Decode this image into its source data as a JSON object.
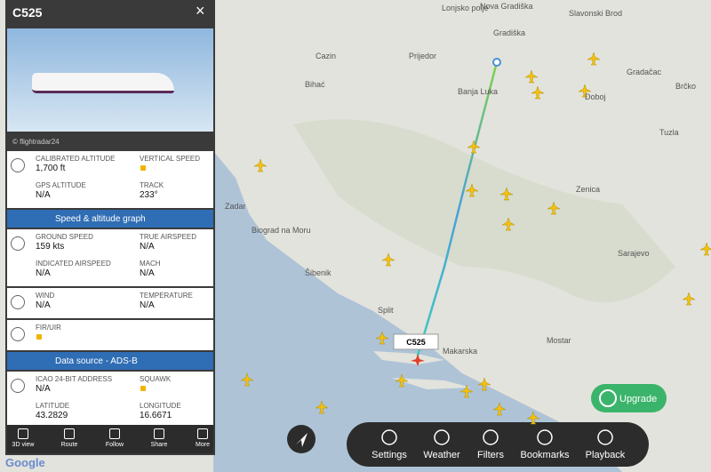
{
  "panel": {
    "title": "C525",
    "photo_credit": "© flightradar24",
    "blocks": [
      {
        "rows": [
          [
            {
              "label": "CALIBRATED ALTITUDE",
              "value": "1,700 ft"
            },
            {
              "label": "VERTICAL SPEED"
            }
          ],
          [
            {
              "label": "GPS ALTITUDE",
              "value": "N/A"
            },
            {
              "label": "TRACK",
              "value": "233°"
            }
          ]
        ]
      },
      {
        "section": "Speed & altitude graph"
      },
      {
        "rows": [
          [
            {
              "label": "GROUND SPEED",
              "value": "159 kts"
            },
            {
              "label": "TRUE AIRSPEED",
              "value": "N/A"
            }
          ],
          [
            {
              "label": "INDICATED AIRSPEED",
              "value": "N/A"
            },
            {
              "label": "MACH",
              "value": "N/A"
            }
          ]
        ]
      },
      {
        "rows": [
          [
            {
              "label": "WIND",
              "value": "N/A"
            },
            {
              "label": "TEMPERATURE",
              "value": "N/A"
            }
          ]
        ]
      },
      {
        "rows": [
          [
            {
              "label": "FIR/UIR"
            }
          ]
        ]
      },
      {
        "section": "Data source - ADS-B"
      },
      {
        "rows": [
          [
            {
              "label": "ICAO 24-BIT ADDRESS",
              "value": "N/A"
            },
            {
              "label": "SQUAWK"
            }
          ],
          [
            {
              "label": "LATITUDE",
              "value": "43.2829"
            },
            {
              "label": "LONGITUDE",
              "value": "16.6671"
            }
          ]
        ]
      }
    ],
    "toolbar": [
      "3D view",
      "Route",
      "Follow",
      "Share",
      "More"
    ]
  },
  "map": {
    "labels": [
      "Lonjsko polje",
      "Nova Gradiška",
      "Slavonski Brod",
      "Gradiška",
      "Prijedor",
      "Cazin",
      "Banja Luka",
      "Bihać",
      "Doboj",
      "Gradačac",
      "Brčko",
      "Tuzla",
      "Zenica",
      "Zadar",
      "Biograd na Moru",
      "Šibenik",
      "Split",
      "Sarajevo",
      "Makarska",
      "Mostar"
    ],
    "flight_label": "C525",
    "upgrade": "Upgrade",
    "attribution": "Google"
  },
  "toolbar": [
    "Settings",
    "Weather",
    "Filters",
    "Bookmarks",
    "Playback"
  ]
}
